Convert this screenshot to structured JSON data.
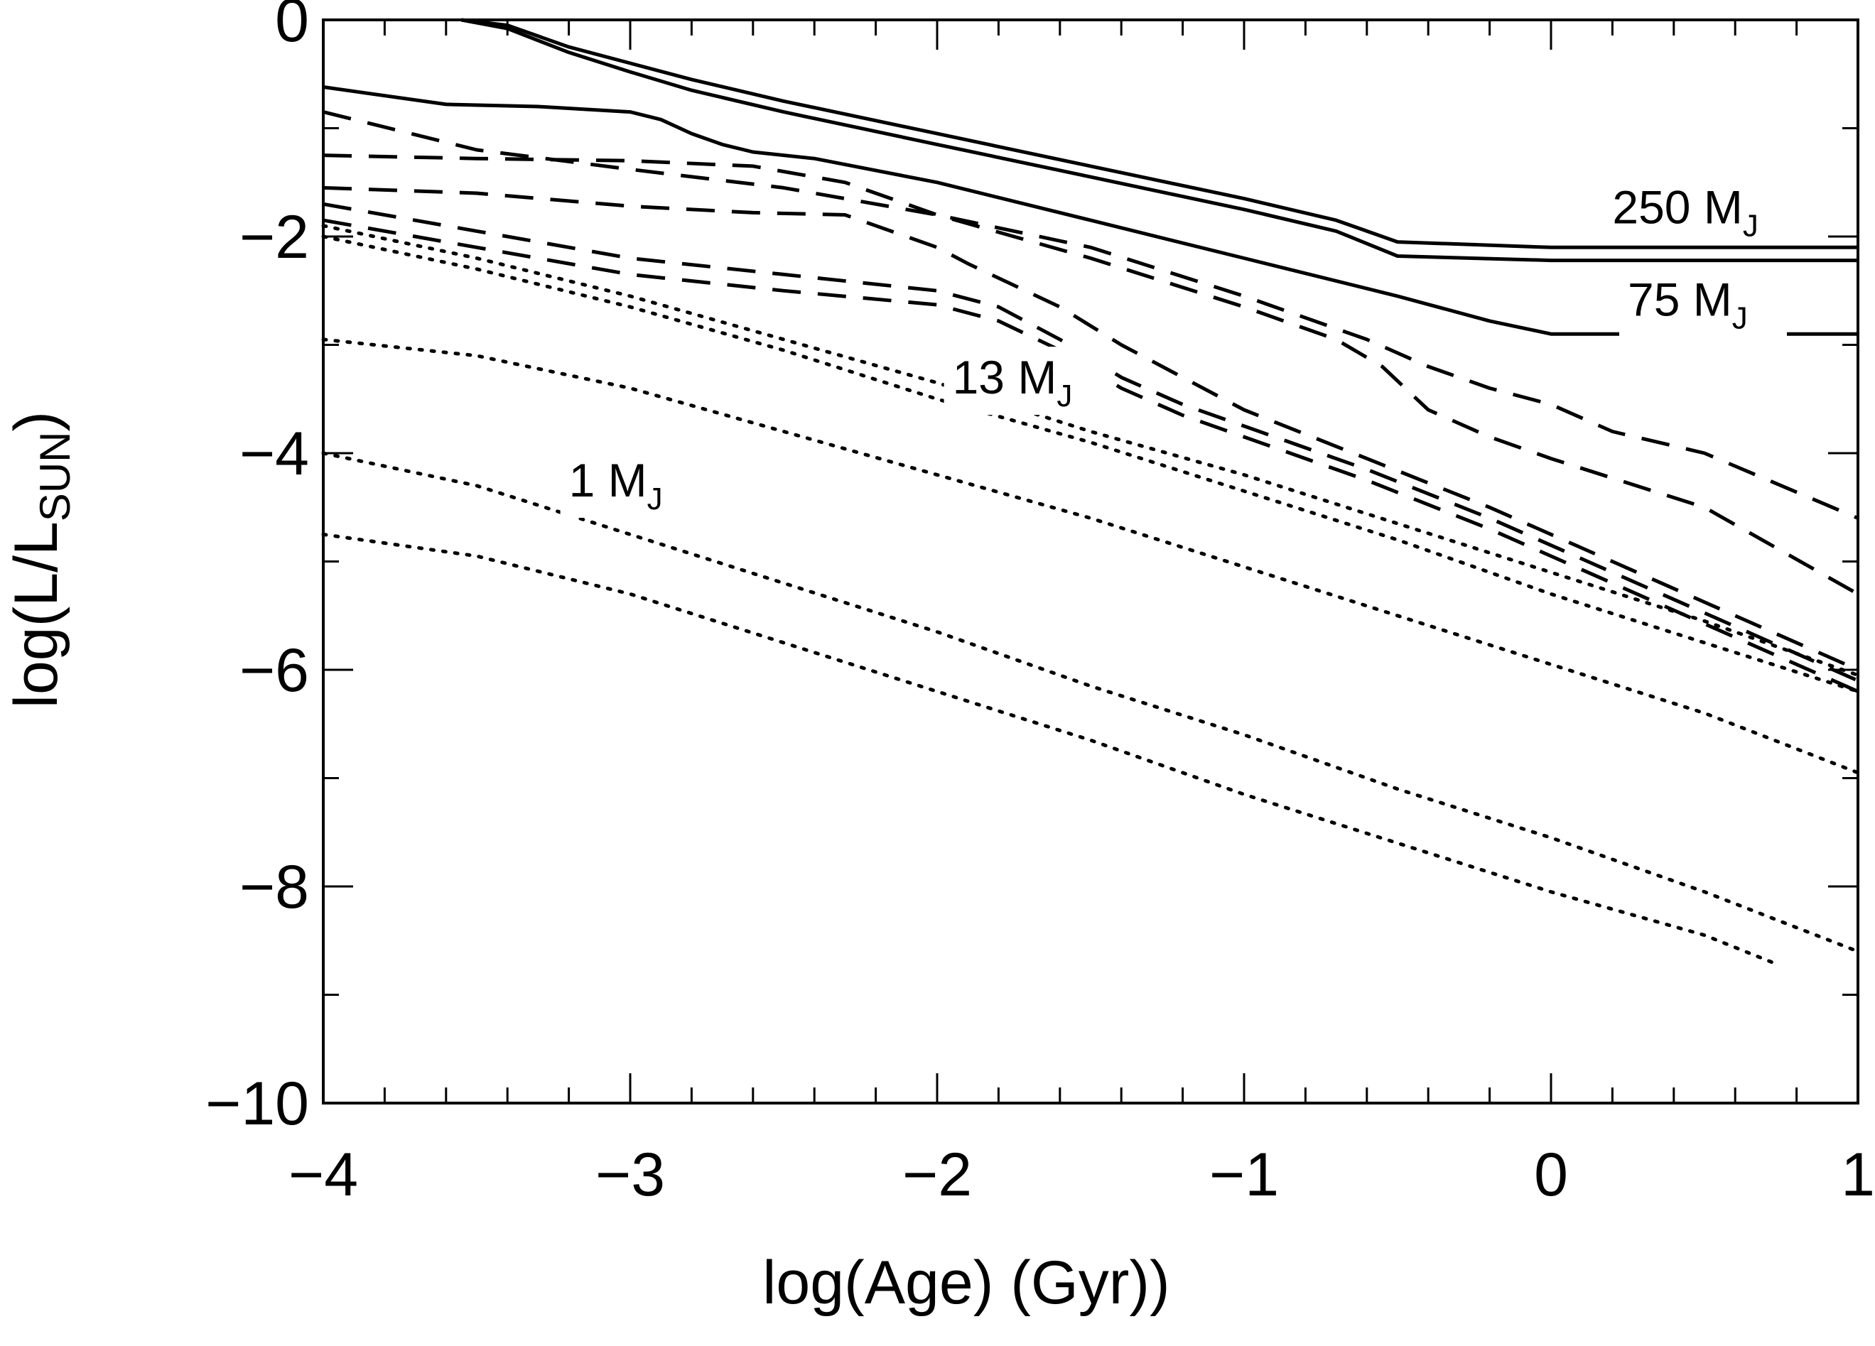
{
  "chart_data": {
    "type": "line",
    "title": "",
    "xlabel": "log(Age) (Gyr))",
    "ylabel_main": "log(L/L",
    "ylabel_sub": "SUN",
    "ylabel_close": ")",
    "xlim": [
      -4,
      1
    ],
    "ylim": [
      -10,
      0
    ],
    "xticks": [
      {
        "v": -4,
        "label": "−4"
      },
      {
        "v": -3,
        "label": "−3"
      },
      {
        "v": -2,
        "label": "−2"
      },
      {
        "v": -1,
        "label": "−1"
      },
      {
        "v": 0,
        "label": "0"
      },
      {
        "v": 1,
        "label": "1"
      }
    ],
    "yticks": [
      {
        "v": 0,
        "label": "0"
      },
      {
        "v": -2,
        "label": "−2"
      },
      {
        "v": -4,
        "label": "−4"
      },
      {
        "v": -6,
        "label": "−6"
      },
      {
        "v": -8,
        "label": "−8"
      },
      {
        "v": -10,
        "label": "−10"
      }
    ],
    "annotations": [
      {
        "id": "250",
        "main": "250 M",
        "sub": "J",
        "x": 0.2,
        "y": -1.88
      },
      {
        "id": "75",
        "main": "75 M",
        "sub": "J",
        "x": 0.25,
        "y": -2.73
      },
      {
        "id": "13",
        "main": "13 M",
        "sub": "J",
        "x": -1.95,
        "y": -3.45
      },
      {
        "id": "1",
        "main": "1 M",
        "sub": "J",
        "x": -3.2,
        "y": -4.4
      }
    ],
    "series": [
      {
        "name": "star-top",
        "style": "solid",
        "x": [
          -3.55,
          -3.4,
          -3.2,
          -3.0,
          -2.8,
          -2.5,
          -2.0,
          -1.5,
          -1.0,
          -0.7,
          -0.5,
          0,
          0.5,
          1
        ],
        "y": [
          0,
          -0.05,
          -0.25,
          -0.4,
          -0.55,
          -0.75,
          -1.05,
          -1.35,
          -1.65,
          -1.85,
          -2.05,
          -2.1,
          -2.1,
          -2.1
        ]
      },
      {
        "name": "star-250",
        "style": "solid",
        "x": [
          -3.55,
          -3.4,
          -3.2,
          -3.0,
          -2.8,
          -2.5,
          -2.0,
          -1.5,
          -1.0,
          -0.7,
          -0.5,
          0,
          0.5,
          1
        ],
        "y": [
          0,
          -0.08,
          -0.3,
          -0.48,
          -0.65,
          -0.85,
          -1.15,
          -1.45,
          -1.75,
          -1.95,
          -2.18,
          -2.22,
          -2.22,
          -2.22
        ]
      },
      {
        "name": "star-75",
        "style": "solid",
        "x": [
          -4,
          -3.6,
          -3.3,
          -3.0,
          -2.9,
          -2.8,
          -2.7,
          -2.6,
          -2.4,
          -2.0,
          -1.5,
          -1.0,
          -0.5,
          -0.2,
          0,
          0.5,
          1
        ],
        "y": [
          -0.62,
          -0.78,
          -0.8,
          -0.85,
          -0.92,
          -1.05,
          -1.15,
          -1.22,
          -1.28,
          -1.5,
          -1.85,
          -2.2,
          -2.55,
          -2.78,
          -2.9,
          -2.9,
          -2.9
        ]
      },
      {
        "name": "bd-1",
        "style": "dashed",
        "x": [
          -4,
          -3.5,
          -3.0,
          -2.5,
          -2.0,
          -1.5,
          -1.0,
          -0.6,
          -0.4,
          -0.2,
          0,
          0.2,
          0.5,
          1
        ],
        "y": [
          -0.85,
          -1.2,
          -1.38,
          -1.55,
          -1.8,
          -2.1,
          -2.55,
          -2.95,
          -3.2,
          -3.4,
          -3.55,
          -3.8,
          -4.0,
          -4.6
        ]
      },
      {
        "name": "bd-2",
        "style": "dashed",
        "x": [
          -4,
          -3.5,
          -3.0,
          -2.6,
          -2.3,
          -2.0,
          -1.5,
          -1.0,
          -0.7,
          -0.55,
          -0.4,
          -0.2,
          0,
          0.5,
          1
        ],
        "y": [
          -1.25,
          -1.28,
          -1.3,
          -1.35,
          -1.5,
          -1.8,
          -2.2,
          -2.65,
          -2.95,
          -3.2,
          -3.6,
          -3.85,
          -4.05,
          -4.5,
          -5.3
        ]
      },
      {
        "name": "bd-3",
        "style": "dashed",
        "x": [
          -4,
          -3.5,
          -3.0,
          -2.6,
          -2.3,
          -2.0,
          -1.9,
          -1.6,
          -1.4,
          -1.2,
          -1.0,
          -0.6,
          -0.2,
          0.2,
          0.6,
          1
        ],
        "y": [
          -1.55,
          -1.6,
          -1.72,
          -1.78,
          -1.8,
          -2.1,
          -2.25,
          -2.65,
          -3.0,
          -3.3,
          -3.6,
          -4.05,
          -4.5,
          -5.0,
          -5.5,
          -6.0
        ]
      },
      {
        "name": "bd-4",
        "style": "dashed",
        "x": [
          -4,
          -3.5,
          -3.0,
          -2.5,
          -2.0,
          -1.8,
          -1.6,
          -1.4,
          -1.2,
          -1.0,
          -0.6,
          -0.2,
          0.2,
          0.6,
          1
        ],
        "y": [
          -1.7,
          -1.95,
          -2.2,
          -2.35,
          -2.5,
          -2.65,
          -2.95,
          -3.3,
          -3.55,
          -3.75,
          -4.15,
          -4.6,
          -5.1,
          -5.6,
          -6.1
        ]
      },
      {
        "name": "bd-5",
        "style": "dashed",
        "x": [
          -4,
          -3.5,
          -3.0,
          -2.5,
          -2.0,
          -1.8,
          -1.6,
          -1.4,
          -1.2,
          -1.0,
          -0.6,
          -0.2,
          0.2,
          0.6,
          1
        ],
        "y": [
          -1.85,
          -2.1,
          -2.35,
          -2.5,
          -2.63,
          -2.78,
          -3.05,
          -3.4,
          -3.65,
          -3.85,
          -4.25,
          -4.7,
          -5.2,
          -5.7,
          -6.2
        ]
      },
      {
        "name": "planet-1",
        "style": "dotted",
        "x": [
          -4,
          -3.5,
          -3.0,
          -2.5,
          -2.0,
          -1.5,
          -1.0,
          -0.5,
          0,
          0.5,
          1
        ],
        "y": [
          -1.9,
          -2.2,
          -2.55,
          -2.95,
          -3.35,
          -3.8,
          -4.2,
          -4.65,
          -5.1,
          -5.55,
          -6.05
        ]
      },
      {
        "name": "planet-2",
        "style": "dotted",
        "x": [
          -4,
          -3.5,
          -3.0,
          -2.5,
          -2.0,
          -1.5,
          -1.0,
          -0.5,
          0,
          0.5,
          1
        ],
        "y": [
          -2.0,
          -2.3,
          -2.65,
          -3.05,
          -3.5,
          -3.9,
          -4.35,
          -4.8,
          -5.3,
          -5.75,
          -6.2
        ]
      },
      {
        "name": "planet-3",
        "style": "dotted",
        "x": [
          -4,
          -3.5,
          -3.0,
          -2.5,
          -2.0,
          -1.5,
          -1.0,
          -0.5,
          0,
          0.5,
          1
        ],
        "y": [
          -2.95,
          -3.1,
          -3.4,
          -3.8,
          -4.2,
          -4.6,
          -5.05,
          -5.5,
          -5.95,
          -6.4,
          -6.95
        ]
      },
      {
        "name": "planet-4",
        "style": "dotted",
        "x": [
          -4,
          -3.5,
          -3.0,
          -2.5,
          -2.0,
          -1.5,
          -1.0,
          -0.5,
          0,
          0.5,
          1
        ],
        "y": [
          -4.0,
          -4.3,
          -4.75,
          -5.2,
          -5.65,
          -6.15,
          -6.6,
          -7.1,
          -7.55,
          -8.05,
          -8.6
        ]
      },
      {
        "name": "planet-5",
        "style": "dotted",
        "x": [
          -4,
          -3.5,
          -3.0,
          -2.5,
          -2.0,
          -1.5,
          -1.0,
          -0.5,
          0,
          0.5,
          0.72
        ],
        "y": [
          -4.75,
          -4.95,
          -5.3,
          -5.75,
          -6.2,
          -6.65,
          -7.15,
          -7.6,
          -8.05,
          -8.45,
          -8.7
        ]
      }
    ]
  }
}
